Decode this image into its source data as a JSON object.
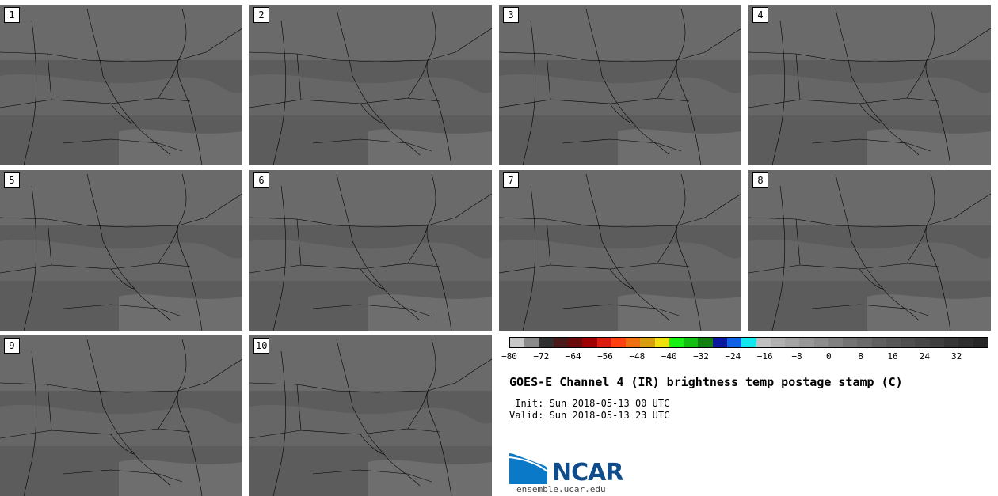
{
  "panels": [
    {
      "label": "1"
    },
    {
      "label": "2"
    },
    {
      "label": "3"
    },
    {
      "label": "4"
    },
    {
      "label": "5"
    },
    {
      "label": "6"
    },
    {
      "label": "7"
    },
    {
      "label": "8"
    },
    {
      "label": "9"
    },
    {
      "label": "10"
    }
  ],
  "colorbar": {
    "colors": [
      "#c8c8c8",
      "#8a8a8a",
      "#303030",
      "#4a1a1a",
      "#6a0a0a",
      "#a00000",
      "#d81c10",
      "#ff4010",
      "#f07010",
      "#d8a010",
      "#f0e010",
      "#18f010",
      "#10c010",
      "#108010",
      "#0818a0",
      "#1060e8",
      "#10e8f0",
      "#c0c0c0",
      "#b0b0b0",
      "#a4a4a4",
      "#989898",
      "#8c8c8c",
      "#808080",
      "#747474",
      "#6a6a6a",
      "#606060",
      "#585858",
      "#4e4e4e",
      "#464646",
      "#3e3e3e",
      "#363636",
      "#2e2e2e",
      "#262626"
    ],
    "tick_labels": [
      "−80",
      "−72",
      "−64",
      "−56",
      "−48",
      "−40",
      "−32",
      "−24",
      "−16",
      "−8",
      "0",
      "8",
      "16",
      "24",
      "32"
    ],
    "range": [
      -80,
      40
    ]
  },
  "title": "GOES-E Channel 4 (IR) brightness temp postage stamp (C)",
  "init": " Init: Sun 2018-05-13 00 UTC",
  "valid": "Valid: Sun 2018-05-13 23 UTC",
  "logo": {
    "text": "NCAR",
    "url_text": "ensemble.ucar.edu",
    "brand_color": "#0f4c8c"
  }
}
